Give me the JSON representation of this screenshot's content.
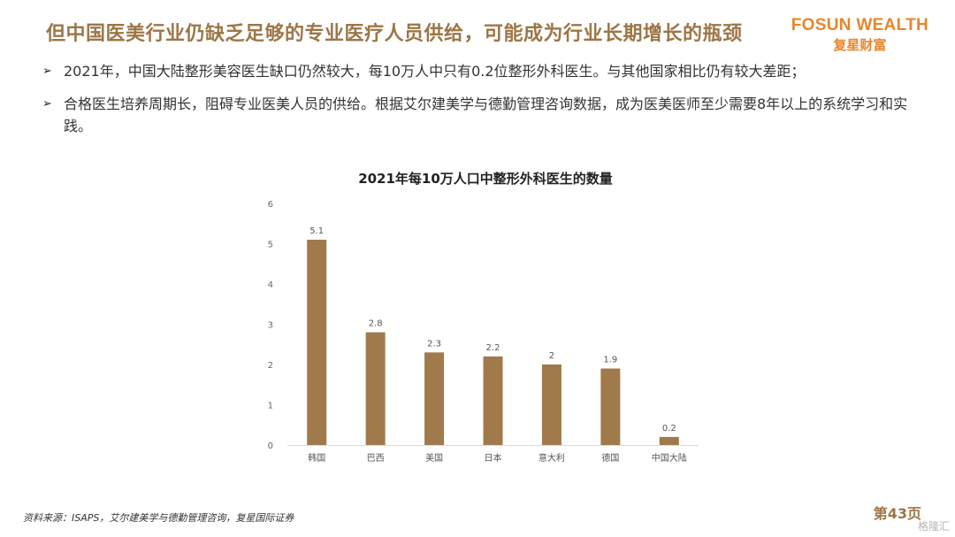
{
  "header": {
    "title": "但中国医美行业仍缺乏足够的专业医疗人员供给，可能成为行业长期增长的瓶颈",
    "logo_en": "FOSUN WEALTH",
    "logo_cn": "复星财富"
  },
  "bullets": [
    {
      "icon": "➢",
      "text": "2021年，中国大陆整形美容医生缺口仍然较大，每10万人中只有0.2位整形外科医生。与其他国家相比仍有较大差距；"
    },
    {
      "icon": "➢",
      "text": "合格医生培养周期长，阻碍专业医美人员的供给。根据艾尔建美学与德勤管理咨询数据，成为医美医师至少需要8年以上的系统学习和实践。"
    }
  ],
  "chart_data": {
    "type": "bar",
    "title": "2021年每10万人口中整形外科医生的数量",
    "categories": [
      "韩国",
      "巴西",
      "美国",
      "日本",
      "意大利",
      "德国",
      "中国大陆"
    ],
    "values": [
      5.1,
      2.8,
      2.3,
      2.2,
      2,
      1.9,
      0.2
    ],
    "value_labels": [
      "5.1",
      "2.8",
      "2.3",
      "2.2",
      "2",
      "1.9",
      "0.2"
    ],
    "ylim": [
      0,
      6
    ],
    "yticks": [
      "0",
      "1",
      "2",
      "3",
      "4",
      "5",
      "6"
    ],
    "bar_color": "#a07a4b",
    "grid": false
  },
  "footer": {
    "source": "资料来源：ISAPS，艾尔建美学与德勤管理咨询，复星国际证券",
    "page": "第43页",
    "watermark": "格隆汇"
  },
  "colors": {
    "title": "#9c7646",
    "logo": "#e8862a"
  }
}
